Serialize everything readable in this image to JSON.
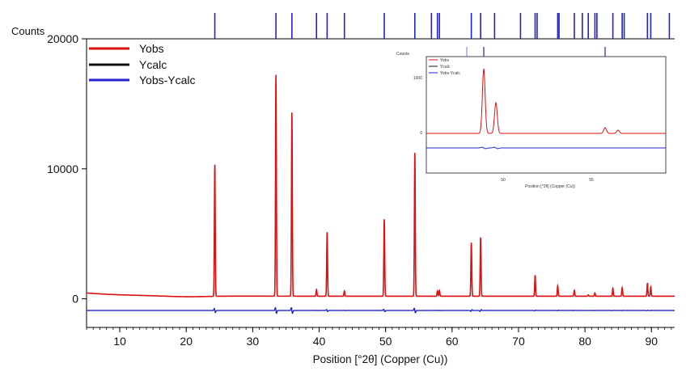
{
  "chart_data": {
    "type": "line",
    "ylabel": "Counts",
    "xlabel": "Position [°2θ] (Copper (Cu))",
    "xlim": [
      5,
      93.5
    ],
    "ylim": [
      -2200,
      20000
    ],
    "xticks": [
      10,
      20,
      30,
      40,
      50,
      60,
      70,
      80,
      90
    ],
    "yticks": [
      0,
      10000,
      20000
    ],
    "legend_position": "top-left",
    "baseline": 200,
    "diff_offset": -900,
    "series": [
      {
        "name": "Yobs",
        "color": "#dd1111"
      },
      {
        "name": "Ycalc",
        "color": "#111111"
      },
      {
        "name": "Yobs-Ycalc",
        "color": "#2222cc"
      }
    ],
    "peaks": [
      {
        "x": 24.3,
        "y": 10300
      },
      {
        "x": 33.5,
        "y": 17200
      },
      {
        "x": 35.9,
        "y": 14300
      },
      {
        "x": 39.6,
        "y": 700
      },
      {
        "x": 41.2,
        "y": 5100
      },
      {
        "x": 43.8,
        "y": 600
      },
      {
        "x": 49.8,
        "y": 6100
      },
      {
        "x": 54.4,
        "y": 11200
      },
      {
        "x": 57.8,
        "y": 600
      },
      {
        "x": 58.1,
        "y": 650
      },
      {
        "x": 62.9,
        "y": 4300
      },
      {
        "x": 64.3,
        "y": 4700
      },
      {
        "x": 72.5,
        "y": 1800
      },
      {
        "x": 75.9,
        "y": 1000
      },
      {
        "x": 78.4,
        "y": 650
      },
      {
        "x": 80.5,
        "y": 300
      },
      {
        "x": 81.5,
        "y": 450
      },
      {
        "x": 84.2,
        "y": 800
      },
      {
        "x": 85.6,
        "y": 850
      },
      {
        "x": 89.4,
        "y": 1200
      },
      {
        "x": 89.9,
        "y": 900
      }
    ],
    "reflection_markers": [
      24.3,
      33.5,
      35.9,
      39.6,
      41.2,
      43.8,
      49.8,
      54.4,
      56.9,
      57.8,
      58.1,
      62.9,
      64.3,
      66.4,
      70.3,
      72.5,
      72.8,
      75.9,
      76.1,
      78.4,
      79.6,
      80.5,
      81.5,
      81.8,
      84.2,
      85.6,
      85.9,
      89.4,
      89.9,
      92.7
    ],
    "inset": {
      "ylabel": "Counts",
      "xlabel": "Position [°2θ] (Copper (Cu))",
      "yticks": [
        0,
        1000
      ],
      "xtick_labels": [
        "50",
        "55"
      ],
      "legend": [
        "Yobs",
        "Ycalc",
        "Yobs-Ycalc"
      ]
    }
  }
}
